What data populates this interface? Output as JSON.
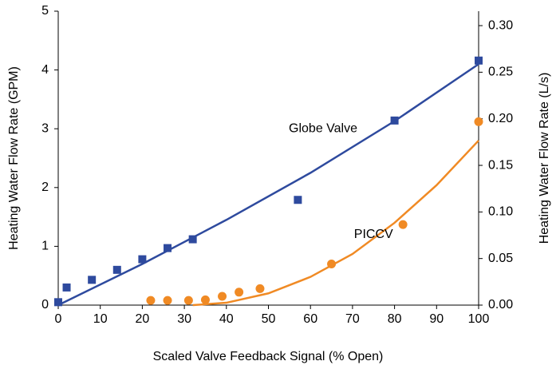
{
  "chart_data": {
    "type": "scatter",
    "x_label": "Scaled Valve Feedback Signal (% Open)",
    "y_label": "Heating Water Flow Rate (GPM)",
    "y2_label": "Heating Water Flow Rate (L/s)",
    "xlim": [
      0,
      100
    ],
    "xticks": [
      0,
      10,
      20,
      30,
      40,
      50,
      60,
      70,
      80,
      90,
      100
    ],
    "ylim": [
      0,
      5
    ],
    "yticks": [
      0,
      1,
      2,
      3,
      4,
      5
    ],
    "y2lim": [
      0,
      0.3155
    ],
    "y2ticks": [
      {
        "value": 0,
        "label": "0.00"
      },
      {
        "value": 0.05,
        "label": "0.05"
      },
      {
        "value": 0.1,
        "label": "0.10"
      },
      {
        "value": 0.15,
        "label": "0.15"
      },
      {
        "value": 0.2,
        "label": "0.20"
      },
      {
        "value": 0.25,
        "label": "0.25"
      },
      {
        "value": 0.3,
        "label": "0.30"
      }
    ],
    "series": [
      {
        "name": "Globe Valve",
        "color": "#2e4a9e",
        "marker": "square",
        "x": [
          0,
          2,
          8,
          14,
          20,
          26,
          32,
          57,
          80,
          100
        ],
        "values": [
          0.05,
          0.3,
          0.43,
          0.6,
          0.78,
          0.97,
          1.12,
          1.79,
          3.14,
          4.16
        ]
      },
      {
        "name": "PICCV",
        "color": "#f08a24",
        "marker": "circle",
        "x": [
          22,
          26,
          31,
          35,
          39,
          43,
          48,
          65,
          82,
          100
        ],
        "values": [
          0.08,
          0.08,
          0.08,
          0.09,
          0.15,
          0.22,
          0.28,
          0.7,
          1.37,
          3.12
        ]
      },
      {
        "color": "#2e4a9e",
        "marker": "line",
        "x": [
          0,
          20,
          40,
          60,
          80,
          100
        ],
        "values": [
          0,
          0.7,
          1.45,
          2.25,
          3.13,
          4.1
        ]
      },
      {
        "color": "#f08a24",
        "marker": "line",
        "x": [
          32,
          40,
          50,
          60,
          70,
          80,
          90,
          100
        ],
        "values": [
          0,
          0.04,
          0.2,
          0.48,
          0.87,
          1.4,
          2.04,
          2.8
        ]
      }
    ],
    "annotations": [
      {
        "series": 0,
        "x": 63,
        "y": 3.0
      },
      {
        "series": 1,
        "x": 75,
        "y": 1.2
      }
    ]
  }
}
